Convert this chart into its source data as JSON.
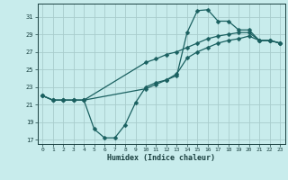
{
  "xlabel": "Humidex (Indice chaleur)",
  "bg_color": "#c8ecec",
  "grid_color": "#a8cccc",
  "line_color": "#1a6060",
  "xlim": [
    -0.5,
    23.5
  ],
  "ylim": [
    16.5,
    32.5
  ],
  "xticks": [
    0,
    1,
    2,
    3,
    4,
    5,
    6,
    7,
    8,
    9,
    10,
    11,
    12,
    13,
    14,
    15,
    16,
    17,
    18,
    19,
    20,
    21,
    22,
    23
  ],
  "yticks": [
    17,
    19,
    21,
    23,
    25,
    27,
    29,
    31
  ],
  "curve1_x": [
    0,
    1,
    2,
    3,
    4,
    5,
    6,
    7,
    8,
    9,
    10,
    11,
    12,
    13,
    14,
    15,
    16,
    17,
    18,
    19,
    20,
    21,
    22,
    23
  ],
  "curve1_y": [
    22.0,
    21.5,
    21.5,
    21.5,
    21.5,
    18.2,
    17.2,
    17.2,
    18.7,
    21.2,
    23.0,
    23.5,
    23.8,
    24.3,
    29.2,
    31.7,
    31.8,
    30.5,
    30.5,
    29.5,
    29.5,
    28.3,
    28.3,
    28.0
  ],
  "curve2_x": [
    0,
    1,
    2,
    3,
    4,
    10,
    11,
    12,
    13,
    14,
    15,
    16,
    17,
    18,
    19,
    20,
    21,
    22,
    23
  ],
  "curve2_y": [
    22.0,
    21.5,
    21.5,
    21.5,
    21.5,
    25.8,
    26.2,
    26.7,
    27.0,
    27.5,
    28.0,
    28.5,
    28.8,
    29.0,
    29.2,
    29.2,
    28.3,
    28.3,
    28.0
  ],
  "curve3_x": [
    0,
    1,
    2,
    3,
    4,
    10,
    11,
    12,
    13,
    14,
    15,
    16,
    17,
    18,
    19,
    20,
    21,
    22,
    23
  ],
  "curve3_y": [
    22.0,
    21.5,
    21.5,
    21.5,
    21.5,
    22.8,
    23.3,
    23.8,
    24.5,
    26.3,
    27.0,
    27.5,
    28.0,
    28.3,
    28.5,
    28.8,
    28.3,
    28.3,
    28.0
  ]
}
